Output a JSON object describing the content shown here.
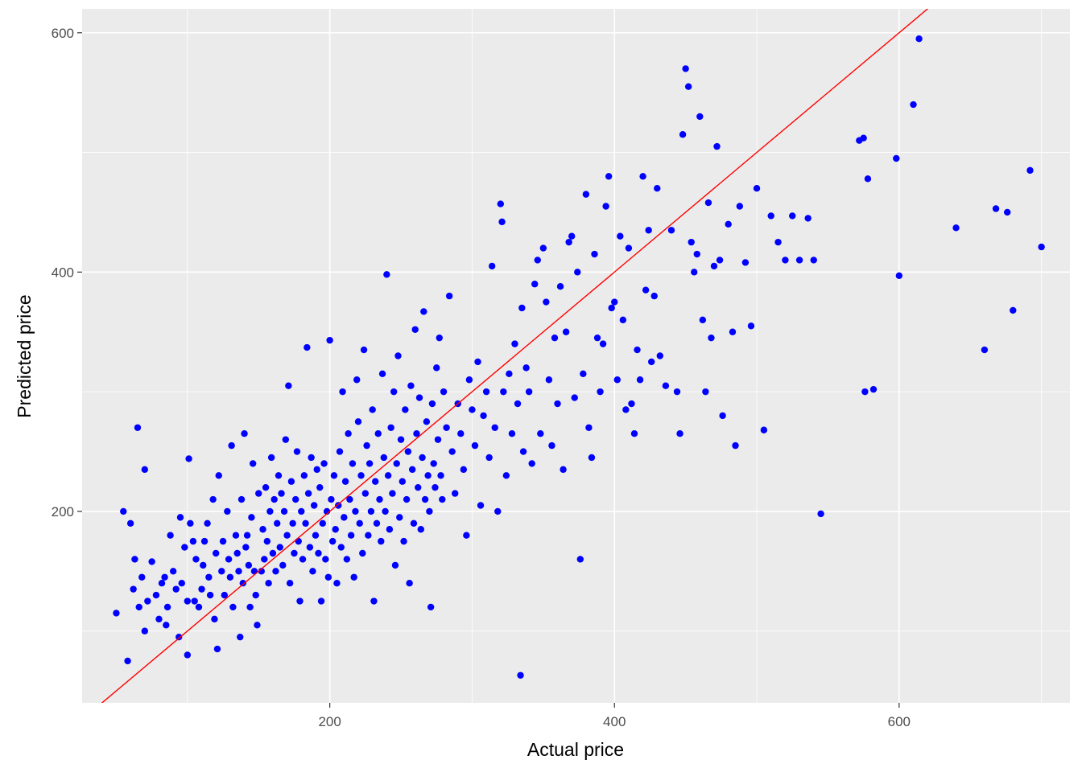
{
  "chart_data": {
    "type": "scatter",
    "xlabel": "Actual price",
    "ylabel": "Predicted price",
    "xlim": [
      26,
      720
    ],
    "ylim": [
      40,
      620
    ],
    "x_ticks": [
      200,
      400,
      600
    ],
    "x_minor_ticks": [
      100,
      300,
      500,
      700
    ],
    "y_ticks": [
      200,
      400,
      600
    ],
    "y_minor_ticks": [
      100,
      300,
      500
    ],
    "grid": true,
    "reference_line": {
      "type": "identity",
      "slope": 1,
      "intercept": 0,
      "color": "#ff0000"
    },
    "colors": {
      "points": "#0000ff",
      "panel_background": "#ebebeb",
      "grid": "#ffffff",
      "reference_line": "#ff0000"
    },
    "points": [
      [
        50,
        115
      ],
      [
        55,
        200
      ],
      [
        58,
        75
      ],
      [
        60,
        190
      ],
      [
        62,
        135
      ],
      [
        63,
        160
      ],
      [
        65,
        270
      ],
      [
        66,
        120
      ],
      [
        68,
        145
      ],
      [
        70,
        235
      ],
      [
        70,
        100
      ],
      [
        72,
        125
      ],
      [
        75,
        158
      ],
      [
        78,
        130
      ],
      [
        80,
        110
      ],
      [
        82,
        140
      ],
      [
        84,
        145
      ],
      [
        85,
        105
      ],
      [
        86,
        120
      ],
      [
        88,
        180
      ],
      [
        90,
        150
      ],
      [
        92,
        135
      ],
      [
        94,
        95
      ],
      [
        95,
        195
      ],
      [
        96,
        140
      ],
      [
        98,
        170
      ],
      [
        100,
        125
      ],
      [
        100,
        80
      ],
      [
        101,
        244
      ],
      [
        102,
        190
      ],
      [
        104,
        175
      ],
      [
        105,
        125
      ],
      [
        106,
        160
      ],
      [
        108,
        120
      ],
      [
        110,
        135
      ],
      [
        111,
        155
      ],
      [
        112,
        175
      ],
      [
        114,
        190
      ],
      [
        115,
        145
      ],
      [
        116,
        130
      ],
      [
        118,
        210
      ],
      [
        119,
        110
      ],
      [
        120,
        165
      ],
      [
        121,
        85
      ],
      [
        122,
        230
      ],
      [
        124,
        150
      ],
      [
        125,
        175
      ],
      [
        126,
        130
      ],
      [
        128,
        200
      ],
      [
        129,
        160
      ],
      [
        130,
        145
      ],
      [
        131,
        255
      ],
      [
        132,
        120
      ],
      [
        134,
        180
      ],
      [
        135,
        165
      ],
      [
        136,
        150
      ],
      [
        137,
        95
      ],
      [
        138,
        210
      ],
      [
        139,
        140
      ],
      [
        140,
        265
      ],
      [
        141,
        170
      ],
      [
        142,
        180
      ],
      [
        143,
        155
      ],
      [
        144,
        120
      ],
      [
        145,
        195
      ],
      [
        146,
        240
      ],
      [
        147,
        150
      ],
      [
        148,
        130
      ],
      [
        149,
        105
      ],
      [
        150,
        215
      ],
      [
        152,
        150
      ],
      [
        153,
        185
      ],
      [
        154,
        160
      ],
      [
        155,
        220
      ],
      [
        156,
        175
      ],
      [
        157,
        140
      ],
      [
        158,
        200
      ],
      [
        159,
        245
      ],
      [
        160,
        165
      ],
      [
        161,
        210
      ],
      [
        162,
        150
      ],
      [
        163,
        190
      ],
      [
        164,
        230
      ],
      [
        165,
        170
      ],
      [
        166,
        215
      ],
      [
        167,
        155
      ],
      [
        168,
        200
      ],
      [
        169,
        260
      ],
      [
        170,
        180
      ],
      [
        171,
        305
      ],
      [
        172,
        140
      ],
      [
        173,
        225
      ],
      [
        174,
        190
      ],
      [
        175,
        165
      ],
      [
        176,
        210
      ],
      [
        177,
        250
      ],
      [
        178,
        175
      ],
      [
        179,
        125
      ],
      [
        180,
        200
      ],
      [
        181,
        160
      ],
      [
        182,
        230
      ],
      [
        183,
        190
      ],
      [
        184,
        337
      ],
      [
        185,
        215
      ],
      [
        186,
        170
      ],
      [
        187,
        245
      ],
      [
        188,
        150
      ],
      [
        189,
        205
      ],
      [
        190,
        180
      ],
      [
        191,
        235
      ],
      [
        192,
        165
      ],
      [
        193,
        220
      ],
      [
        194,
        125
      ],
      [
        195,
        190
      ],
      [
        196,
        240
      ],
      [
        197,
        160
      ],
      [
        198,
        200
      ],
      [
        199,
        145
      ],
      [
        200,
        343
      ],
      [
        201,
        210
      ],
      [
        202,
        175
      ],
      [
        203,
        230
      ],
      [
        204,
        185
      ],
      [
        205,
        140
      ],
      [
        206,
        205
      ],
      [
        207,
        250
      ],
      [
        208,
        170
      ],
      [
        209,
        300
      ],
      [
        210,
        195
      ],
      [
        211,
        225
      ],
      [
        212,
        160
      ],
      [
        213,
        265
      ],
      [
        214,
        210
      ],
      [
        215,
        180
      ],
      [
        216,
        240
      ],
      [
        217,
        145
      ],
      [
        218,
        200
      ],
      [
        219,
        310
      ],
      [
        220,
        275
      ],
      [
        221,
        190
      ],
      [
        222,
        230
      ],
      [
        223,
        165
      ],
      [
        224,
        335
      ],
      [
        225,
        215
      ],
      [
        226,
        255
      ],
      [
        227,
        180
      ],
      [
        228,
        240
      ],
      [
        229,
        200
      ],
      [
        230,
        285
      ],
      [
        231,
        125
      ],
      [
        232,
        225
      ],
      [
        233,
        190
      ],
      [
        234,
        265
      ],
      [
        235,
        210
      ],
      [
        236,
        175
      ],
      [
        237,
        315
      ],
      [
        238,
        245
      ],
      [
        239,
        200
      ],
      [
        240,
        398
      ],
      [
        241,
        230
      ],
      [
        242,
        185
      ],
      [
        243,
        270
      ],
      [
        244,
        215
      ],
      [
        245,
        300
      ],
      [
        246,
        155
      ],
      [
        247,
        240
      ],
      [
        248,
        330
      ],
      [
        249,
        195
      ],
      [
        250,
        260
      ],
      [
        251,
        225
      ],
      [
        252,
        175
      ],
      [
        253,
        285
      ],
      [
        254,
        210
      ],
      [
        255,
        250
      ],
      [
        256,
        140
      ],
      [
        257,
        305
      ],
      [
        258,
        235
      ],
      [
        259,
        190
      ],
      [
        260,
        352
      ],
      [
        261,
        265
      ],
      [
        262,
        220
      ],
      [
        263,
        295
      ],
      [
        264,
        185
      ],
      [
        265,
        245
      ],
      [
        266,
        367
      ],
      [
        267,
        210
      ],
      [
        268,
        275
      ],
      [
        269,
        230
      ],
      [
        270,
        200
      ],
      [
        271,
        120
      ],
      [
        272,
        290
      ],
      [
        273,
        240
      ],
      [
        274,
        220
      ],
      [
        275,
        320
      ],
      [
        276,
        260
      ],
      [
        277,
        345
      ],
      [
        278,
        230
      ],
      [
        279,
        210
      ],
      [
        280,
        300
      ],
      [
        282,
        270
      ],
      [
        284,
        380
      ],
      [
        286,
        250
      ],
      [
        288,
        215
      ],
      [
        290,
        290
      ],
      [
        292,
        265
      ],
      [
        294,
        235
      ],
      [
        296,
        180
      ],
      [
        298,
        310
      ],
      [
        300,
        285
      ],
      [
        302,
        255
      ],
      [
        304,
        325
      ],
      [
        306,
        205
      ],
      [
        308,
        280
      ],
      [
        310,
        300
      ],
      [
        312,
        245
      ],
      [
        314,
        405
      ],
      [
        316,
        270
      ],
      [
        318,
        200
      ],
      [
        320,
        457
      ],
      [
        321,
        442
      ],
      [
        322,
        300
      ],
      [
        324,
        230
      ],
      [
        326,
        315
      ],
      [
        328,
        265
      ],
      [
        330,
        340
      ],
      [
        332,
        290
      ],
      [
        334,
        63
      ],
      [
        335,
        370
      ],
      [
        336,
        250
      ],
      [
        338,
        320
      ],
      [
        340,
        300
      ],
      [
        342,
        240
      ],
      [
        344,
        390
      ],
      [
        346,
        410
      ],
      [
        348,
        265
      ],
      [
        350,
        420
      ],
      [
        352,
        375
      ],
      [
        354,
        310
      ],
      [
        356,
        255
      ],
      [
        358,
        345
      ],
      [
        360,
        290
      ],
      [
        362,
        388
      ],
      [
        364,
        235
      ],
      [
        366,
        350
      ],
      [
        368,
        425
      ],
      [
        370,
        430
      ],
      [
        372,
        295
      ],
      [
        374,
        400
      ],
      [
        376,
        160
      ],
      [
        378,
        315
      ],
      [
        380,
        465
      ],
      [
        382,
        270
      ],
      [
        384,
        245
      ],
      [
        386,
        415
      ],
      [
        388,
        345
      ],
      [
        390,
        300
      ],
      [
        392,
        340
      ],
      [
        394,
        455
      ],
      [
        396,
        480
      ],
      [
        398,
        370
      ],
      [
        400,
        375
      ],
      [
        402,
        310
      ],
      [
        404,
        430
      ],
      [
        406,
        360
      ],
      [
        408,
        285
      ],
      [
        410,
        420
      ],
      [
        412,
        290
      ],
      [
        414,
        265
      ],
      [
        416,
        335
      ],
      [
        418,
        310
      ],
      [
        420,
        480
      ],
      [
        422,
        385
      ],
      [
        424,
        435
      ],
      [
        426,
        325
      ],
      [
        428,
        380
      ],
      [
        430,
        470
      ],
      [
        432,
        330
      ],
      [
        436,
        305
      ],
      [
        440,
        435
      ],
      [
        444,
        300
      ],
      [
        446,
        265
      ],
      [
        448,
        515
      ],
      [
        450,
        570
      ],
      [
        452,
        555
      ],
      [
        454,
        425
      ],
      [
        456,
        400
      ],
      [
        458,
        415
      ],
      [
        460,
        530
      ],
      [
        462,
        360
      ],
      [
        464,
        300
      ],
      [
        466,
        458
      ],
      [
        468,
        345
      ],
      [
        470,
        405
      ],
      [
        472,
        505
      ],
      [
        474,
        410
      ],
      [
        476,
        280
      ],
      [
        480,
        440
      ],
      [
        483,
        350
      ],
      [
        485,
        255
      ],
      [
        488,
        455
      ],
      [
        492,
        408
      ],
      [
        496,
        355
      ],
      [
        500,
        470
      ],
      [
        505,
        268
      ],
      [
        510,
        447
      ],
      [
        515,
        425
      ],
      [
        520,
        410
      ],
      [
        525,
        447
      ],
      [
        530,
        410
      ],
      [
        536,
        445
      ],
      [
        540,
        410
      ],
      [
        545,
        198
      ],
      [
        572,
        510
      ],
      [
        575,
        512
      ],
      [
        576,
        300
      ],
      [
        578,
        478
      ],
      [
        582,
        302
      ],
      [
        598,
        495
      ],
      [
        600,
        397
      ],
      [
        610,
        540
      ],
      [
        614,
        595
      ],
      [
        640,
        437
      ],
      [
        660,
        335
      ],
      [
        668,
        453
      ],
      [
        676,
        450
      ],
      [
        680,
        368
      ],
      [
        692,
        485
      ],
      [
        700,
        421
      ]
    ]
  }
}
